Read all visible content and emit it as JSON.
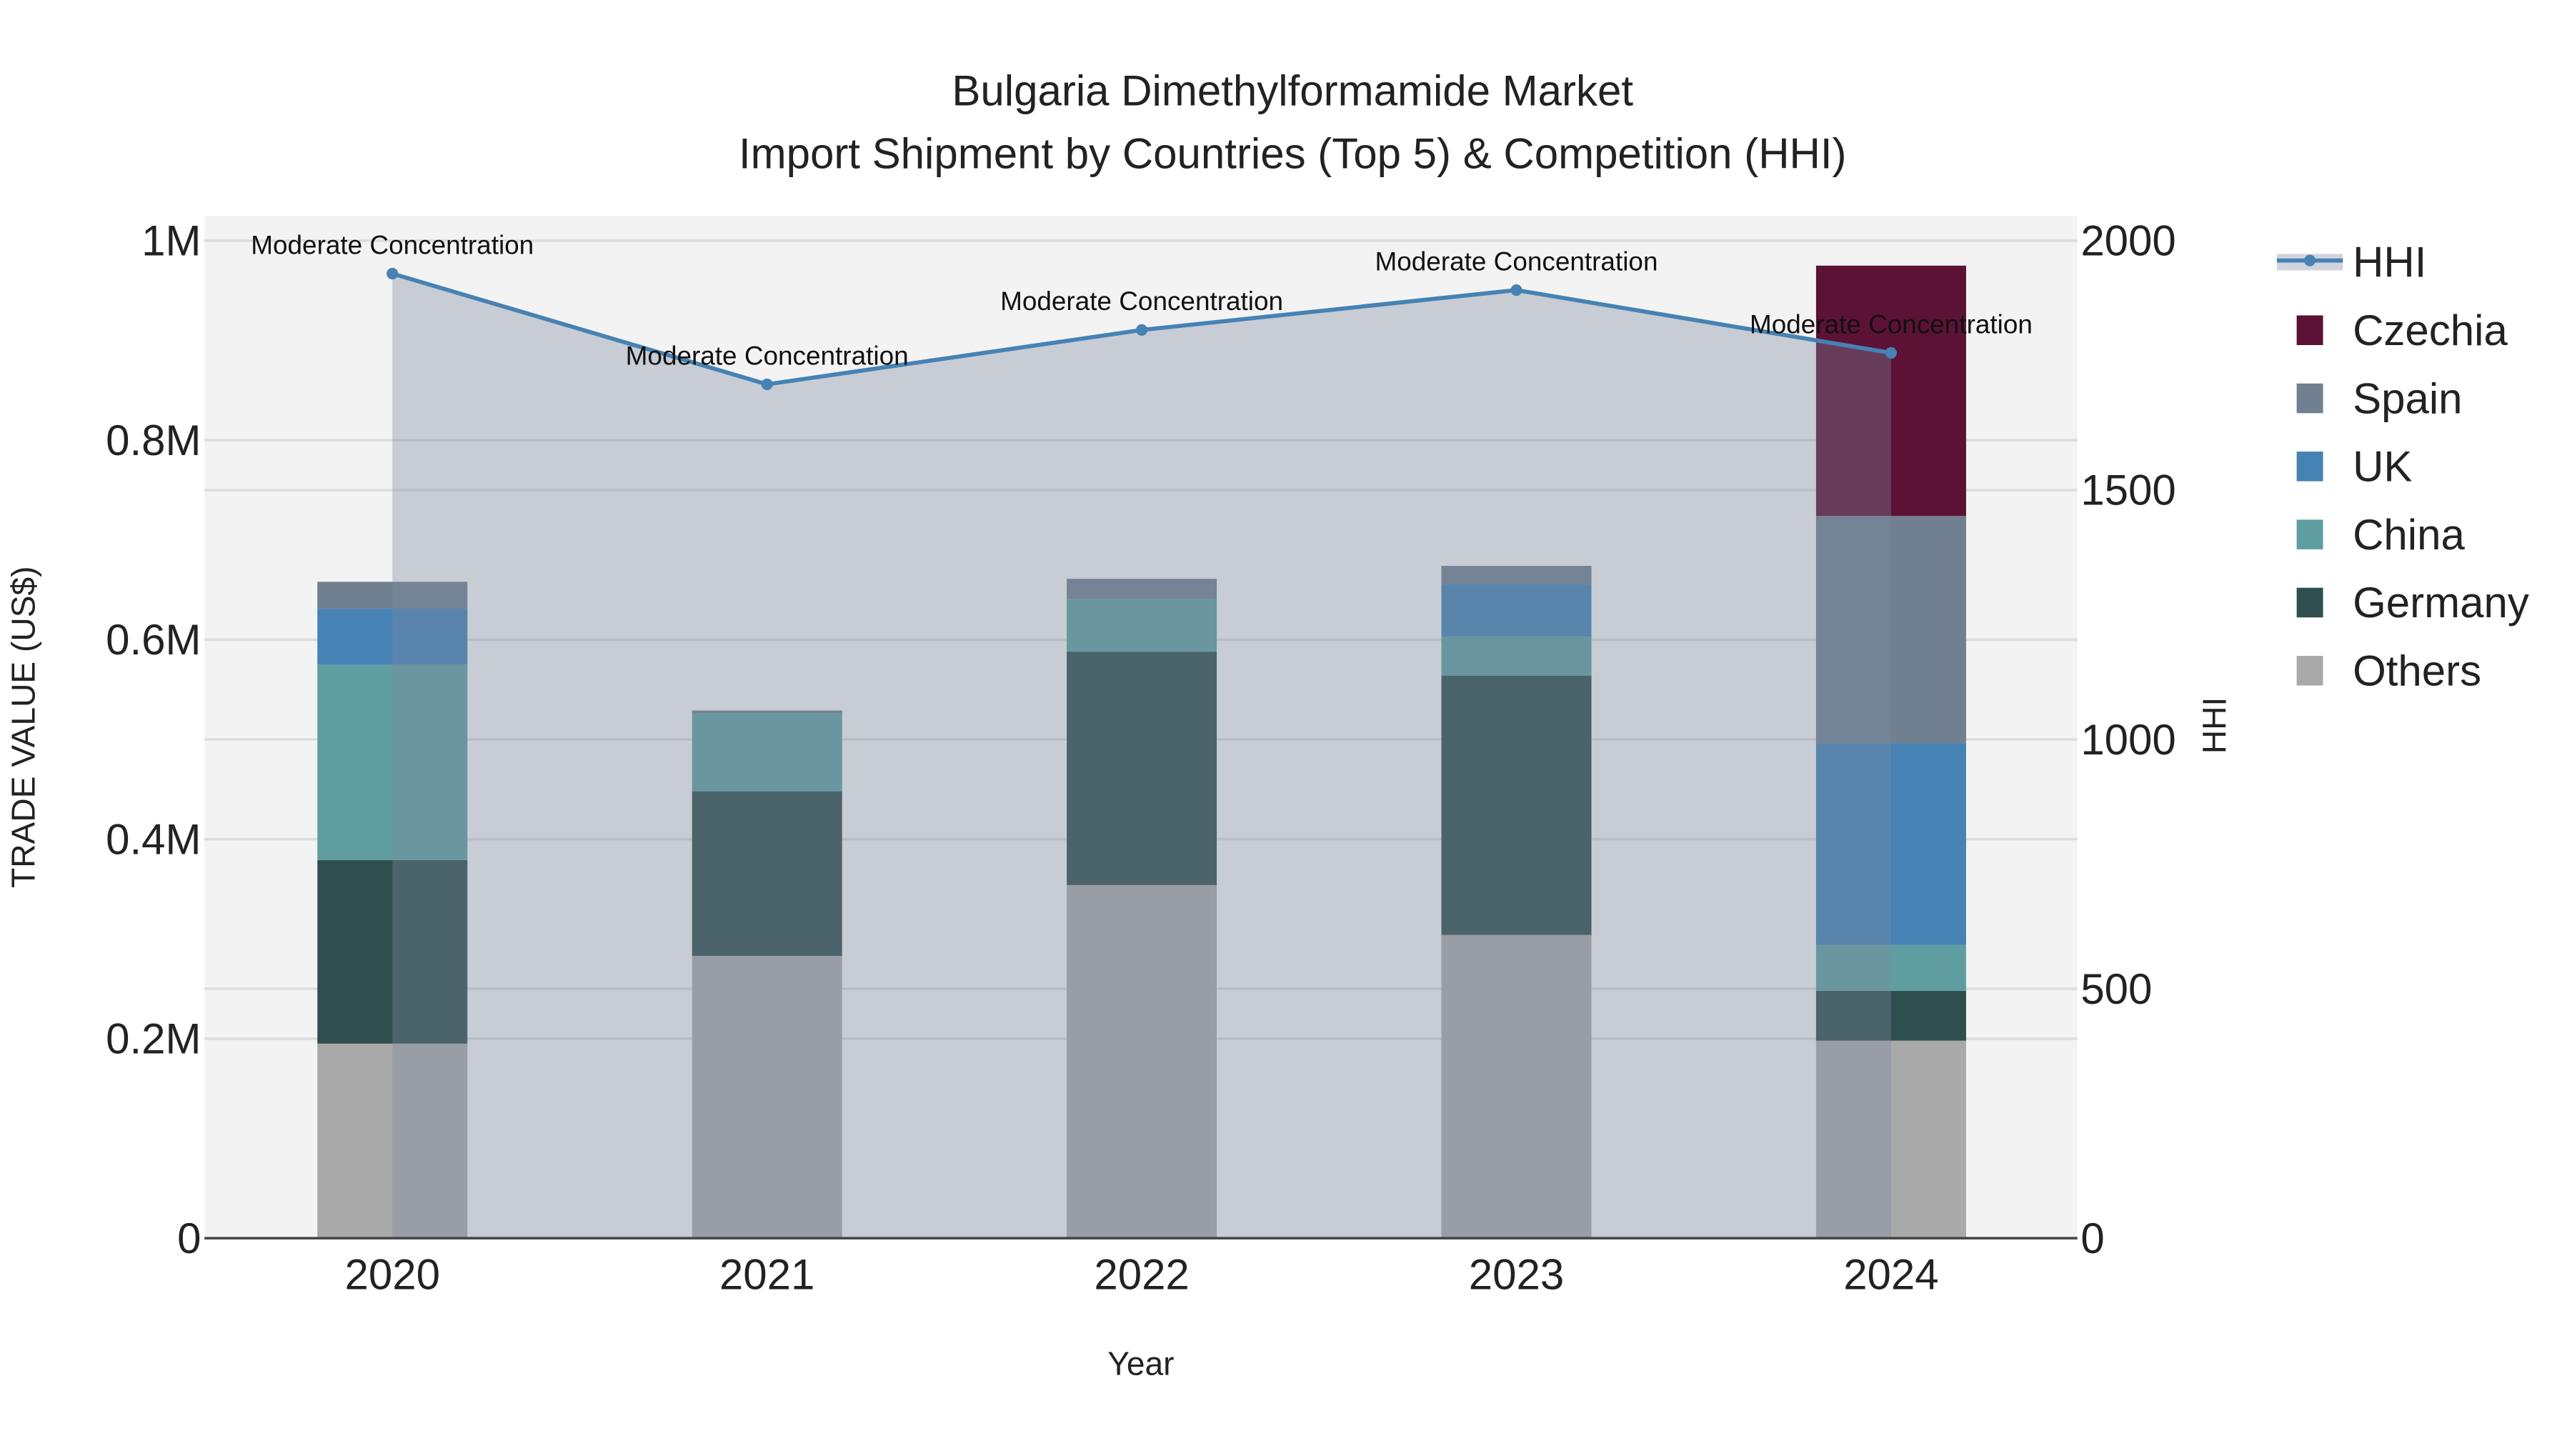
{
  "chart_data": {
    "type": "bar",
    "title": "Bulgaria Dimethylformamide Market",
    "subtitle": "Import Shipment by Countries (Top 5) & Competition (HHI)",
    "xlabel": "Year",
    "ylabel": "TRADE VALUE (US$)",
    "y2label": "HHI",
    "categories": [
      "2020",
      "2021",
      "2022",
      "2023",
      "2024"
    ],
    "ylim": [
      0,
      1000000
    ],
    "y_ticks": [
      {
        "v": 0,
        "label": "0"
      },
      {
        "v": 200000,
        "label": "0.2M"
      },
      {
        "v": 400000,
        "label": "0.4M"
      },
      {
        "v": 600000,
        "label": "0.6M"
      },
      {
        "v": 800000,
        "label": "0.8M"
      },
      {
        "v": 1000000,
        "label": "1M"
      }
    ],
    "y2lim": [
      0,
      2000
    ],
    "y2_ticks": [
      {
        "v": 0,
        "label": "0"
      },
      {
        "v": 500,
        "label": "500"
      },
      {
        "v": 1000,
        "label": "1000"
      },
      {
        "v": 1500,
        "label": "1500"
      },
      {
        "v": 2000,
        "label": "2000"
      }
    ],
    "stacked": true,
    "series": [
      {
        "name": "Others",
        "color": "#a9a9a9",
        "values": [
          195000,
          283000,
          354000,
          304000,
          198000
        ]
      },
      {
        "name": "Germany",
        "color": "#2f4f4f",
        "values": [
          184000,
          165000,
          234000,
          260000,
          50000
        ]
      },
      {
        "name": "China",
        "color": "#5f9ea0",
        "values": [
          196000,
          78000,
          53000,
          39000,
          46000
        ]
      },
      {
        "name": "UK",
        "color": "#4682b4",
        "values": [
          56000,
          0,
          0,
          53000,
          202000
        ]
      },
      {
        "name": "Spain",
        "color": "#708090",
        "values": [
          27000,
          3000,
          20000,
          18000,
          228000
        ]
      },
      {
        "name": "Czechia",
        "color": "#5c1234",
        "values": [
          0,
          0,
          0,
          0,
          251000
        ]
      }
    ],
    "hhi": {
      "name": "HHI",
      "color": "#4682b4",
      "values": [
        1934,
        1712,
        1821,
        1901,
        1775
      ],
      "annotations": [
        "Moderate Concentration",
        "Moderate Concentration",
        "Moderate Concentration",
        "Moderate Concentration",
        "Moderate Concentration"
      ]
    },
    "legend": {
      "placement": "right",
      "order": [
        "HHI",
        "Czechia",
        "Spain",
        "UK",
        "China",
        "Germany",
        "Others"
      ]
    },
    "grid": true
  }
}
